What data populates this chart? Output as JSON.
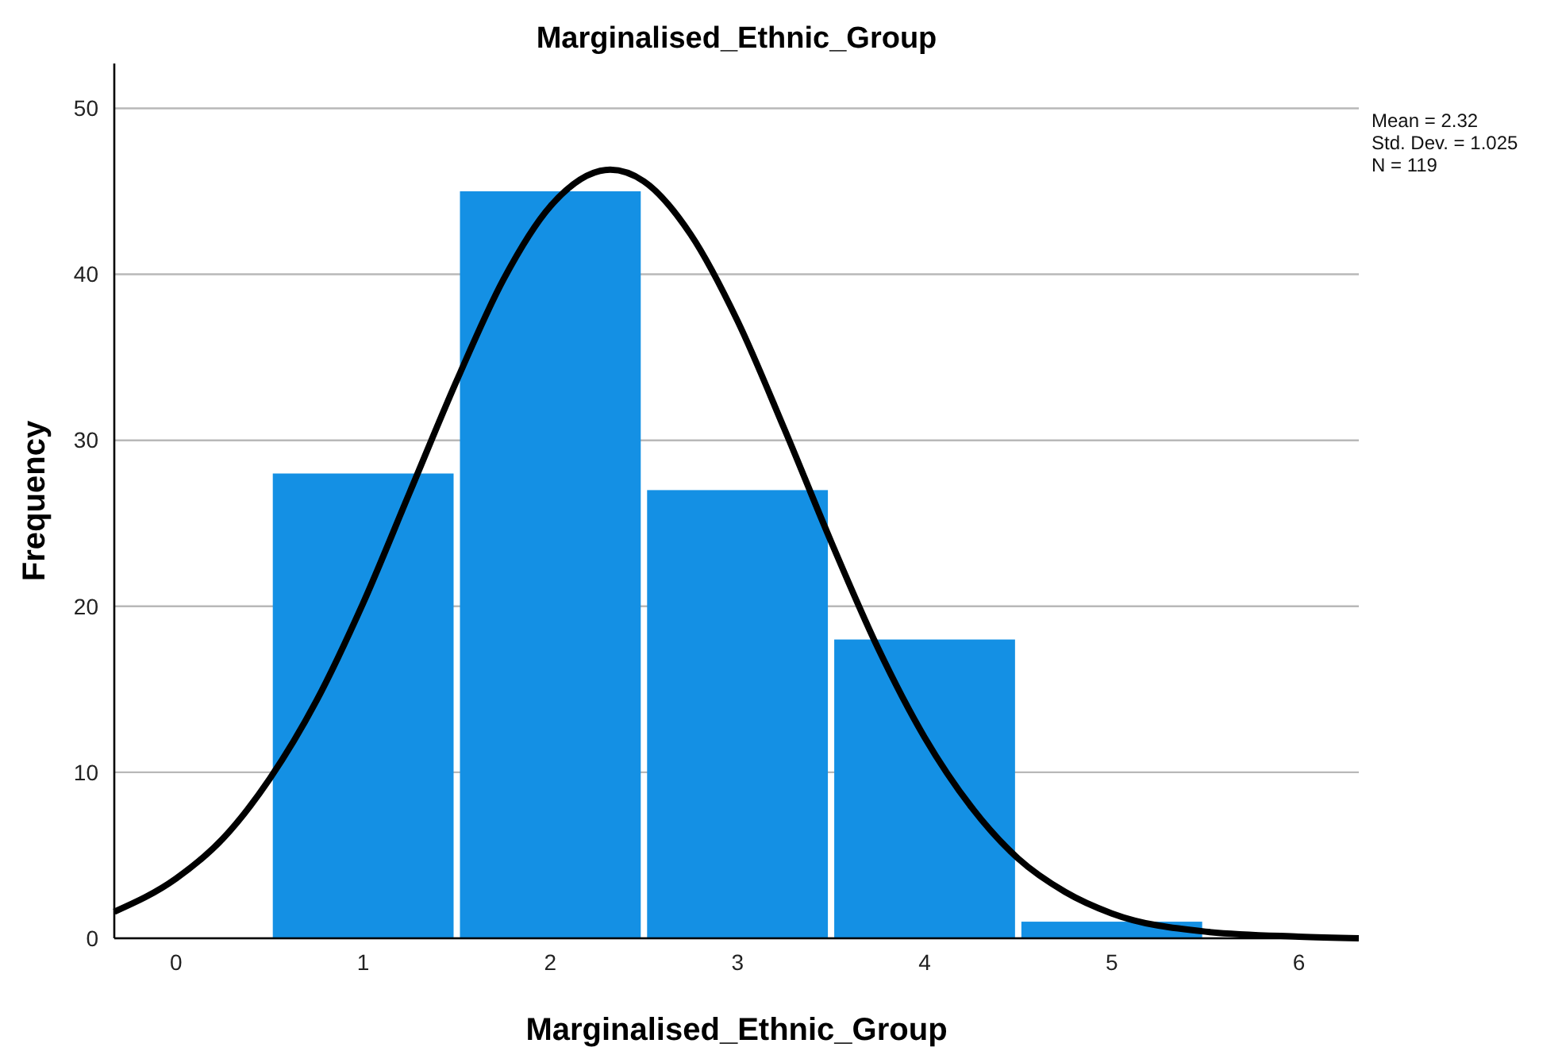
{
  "chart_data": {
    "type": "histogram",
    "title": "Marginalised_Ethnic_Group",
    "xlabel": "Marginalised_Ethnic_Group",
    "ylabel": "Frequency",
    "bins": [
      0.5,
      1.5,
      2.5,
      3.5,
      4.5,
      5.5
    ],
    "series": [
      {
        "color": "#1490e4",
        "values": [
          28,
          45,
          27,
          18,
          1
        ]
      },
      {
        "type": "line",
        "color": "#000000",
        "marker": "none",
        "x": [
          -0.33,
          0,
          0.25,
          0.5,
          0.75,
          1,
          1.25,
          1.5,
          1.75,
          2,
          2.32,
          2.5,
          2.75,
          3,
          3.25,
          3.5,
          3.75,
          4,
          4.25,
          4.5,
          4.75,
          5,
          5.5,
          6,
          6.32
        ],
        "values": [
          1.6,
          3.6,
          6.0,
          9.6,
          14.3,
          20.2,
          26.9,
          33.6,
          39.7,
          44.1,
          46.3,
          45.6,
          42.4,
          37.2,
          30.7,
          23.9,
          17.5,
          12.1,
          7.9,
          4.8,
          2.8,
          1.5,
          0.4,
          0.1,
          0.0
        ]
      }
    ],
    "xlim": [
      -0.33,
      6.32
    ],
    "xticks": [
      0,
      1,
      2,
      3,
      4,
      5,
      6
    ],
    "ylim": [
      0,
      52.7
    ],
    "yticks": [
      0,
      10,
      20,
      30,
      40,
      50
    ],
    "grid": "y",
    "annotations": [
      "Mean = 2.32",
      "Std. Dev. = 1.025",
      "N = 119"
    ]
  }
}
